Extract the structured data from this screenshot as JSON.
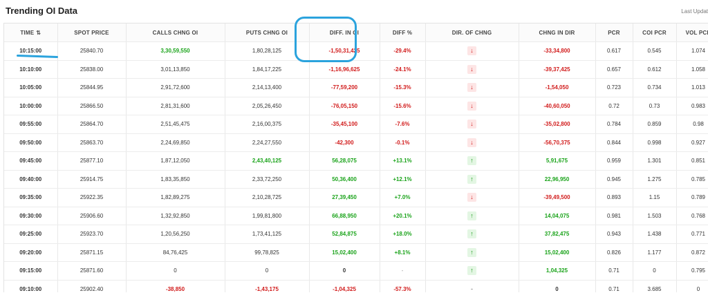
{
  "header": {
    "title": "Trending OI Data",
    "last_update_label": "Last Updat"
  },
  "table": {
    "columns": [
      "TIME",
      "SPOT PRICE",
      "CALLS CHNG OI",
      "PUTS CHNG OI",
      "DIFF. IN OI",
      "DIFF %",
      "DIR. OF CHNG",
      "CHNG IN DIR",
      "PCR",
      "COI PCR",
      "VOL PCR"
    ],
    "sort_icon": "⇅",
    "rows": [
      {
        "time": "10:15:00",
        "spot": "25840.70",
        "calls": "3,30,59,550",
        "calls_color": "pos",
        "puts": "1,80,28,125",
        "puts_color": "plain",
        "diff": "-1,50,31,425",
        "diff_color": "neg",
        "pct": "-29.4%",
        "pct_color": "neg",
        "dir": "down",
        "dir_icon": "↓",
        "chng": "-33,34,800",
        "chng_color": "neg",
        "pcr": "0.617",
        "coi": "0.545",
        "vol": "1.074"
      },
      {
        "time": "10:10:00",
        "spot": "25838.00",
        "calls": "3,01,13,850",
        "calls_color": "plain",
        "puts": "1,84,17,225",
        "puts_color": "plain",
        "diff": "-1,16,96,625",
        "diff_color": "neg",
        "pct": "-24.1%",
        "pct_color": "neg",
        "dir": "down",
        "dir_icon": "↓",
        "chng": "-39,37,425",
        "chng_color": "neg",
        "pcr": "0.657",
        "coi": "0.612",
        "vol": "1.058"
      },
      {
        "time": "10:05:00",
        "spot": "25844.95",
        "calls": "2,91,72,600",
        "calls_color": "plain",
        "puts": "2,14,13,400",
        "puts_color": "plain",
        "diff": "-77,59,200",
        "diff_color": "neg",
        "pct": "-15.3%",
        "pct_color": "neg",
        "dir": "down",
        "dir_icon": "↓",
        "chng": "-1,54,050",
        "chng_color": "neg",
        "pcr": "0.723",
        "coi": "0.734",
        "vol": "1.013"
      },
      {
        "time": "10:00:00",
        "spot": "25866.50",
        "calls": "2,81,31,600",
        "calls_color": "plain",
        "puts": "2,05,26,450",
        "puts_color": "plain",
        "diff": "-76,05,150",
        "diff_color": "neg",
        "pct": "-15.6%",
        "pct_color": "neg",
        "dir": "down",
        "dir_icon": "↓",
        "chng": "-40,60,050",
        "chng_color": "neg",
        "pcr": "0.72",
        "coi": "0.73",
        "vol": "0.983"
      },
      {
        "time": "09:55:00",
        "spot": "25864.70",
        "calls": "2,51,45,475",
        "calls_color": "plain",
        "puts": "2,16,00,375",
        "puts_color": "plain",
        "diff": "-35,45,100",
        "diff_color": "neg",
        "pct": "-7.6%",
        "pct_color": "neg",
        "dir": "down",
        "dir_icon": "↓",
        "chng": "-35,02,800",
        "chng_color": "neg",
        "pcr": "0.784",
        "coi": "0.859",
        "vol": "0.98"
      },
      {
        "time": "09:50:00",
        "spot": "25863.70",
        "calls": "2,24,69,850",
        "calls_color": "plain",
        "puts": "2,24,27,550",
        "puts_color": "plain",
        "diff": "-42,300",
        "diff_color": "neg",
        "pct": "-0.1%",
        "pct_color": "neg",
        "dir": "down",
        "dir_icon": "↓",
        "chng": "-56,70,375",
        "chng_color": "neg",
        "pcr": "0.844",
        "coi": "0.998",
        "vol": "0.927"
      },
      {
        "time": "09:45:00",
        "spot": "25877.10",
        "calls": "1,87,12,050",
        "calls_color": "plain",
        "puts": "2,43,40,125",
        "puts_color": "pos",
        "diff": "56,28,075",
        "diff_color": "pos",
        "pct": "+13.1%",
        "pct_color": "pos",
        "dir": "up",
        "dir_icon": "↑",
        "chng": "5,91,675",
        "chng_color": "pos",
        "pcr": "0.959",
        "coi": "1.301",
        "vol": "0.851"
      },
      {
        "time": "09:40:00",
        "spot": "25914.75",
        "calls": "1,83,35,850",
        "calls_color": "plain",
        "puts": "2,33,72,250",
        "puts_color": "plain",
        "diff": "50,36,400",
        "diff_color": "pos",
        "pct": "+12.1%",
        "pct_color": "pos",
        "dir": "up",
        "dir_icon": "↑",
        "chng": "22,96,950",
        "chng_color": "pos",
        "pcr": "0.945",
        "coi": "1.275",
        "vol": "0.785"
      },
      {
        "time": "09:35:00",
        "spot": "25922.35",
        "calls": "1,82,89,275",
        "calls_color": "plain",
        "puts": "2,10,28,725",
        "puts_color": "plain",
        "diff": "27,39,450",
        "diff_color": "pos",
        "pct": "+7.0%",
        "pct_color": "pos",
        "dir": "down",
        "dir_icon": "↓",
        "chng": "-39,49,500",
        "chng_color": "neg",
        "pcr": "0.893",
        "coi": "1.15",
        "vol": "0.789"
      },
      {
        "time": "09:30:00",
        "spot": "25906.60",
        "calls": "1,32,92,850",
        "calls_color": "plain",
        "puts": "1,99,81,800",
        "puts_color": "plain",
        "diff": "66,88,950",
        "diff_color": "pos",
        "pct": "+20.1%",
        "pct_color": "pos",
        "dir": "up",
        "dir_icon": "↑",
        "chng": "14,04,075",
        "chng_color": "pos",
        "pcr": "0.981",
        "coi": "1.503",
        "vol": "0.768"
      },
      {
        "time": "09:25:00",
        "spot": "25923.70",
        "calls": "1,20,56,250",
        "calls_color": "plain",
        "puts": "1,73,41,125",
        "puts_color": "plain",
        "diff": "52,84,875",
        "diff_color": "pos",
        "pct": "+18.0%",
        "pct_color": "pos",
        "dir": "up",
        "dir_icon": "↑",
        "chng": "37,82,475",
        "chng_color": "pos",
        "pcr": "0.943",
        "coi": "1.438",
        "vol": "0.771"
      },
      {
        "time": "09:20:00",
        "spot": "25871.15",
        "calls": "84,76,425",
        "calls_color": "plain",
        "puts": "99,78,825",
        "puts_color": "plain",
        "diff": "15,02,400",
        "diff_color": "pos",
        "pct": "+8.1%",
        "pct_color": "pos",
        "dir": "up",
        "dir_icon": "↑",
        "chng": "15,02,400",
        "chng_color": "pos",
        "pcr": "0.826",
        "coi": "1.177",
        "vol": "0.872"
      },
      {
        "time": "09:15:00",
        "spot": "25871.60",
        "calls": "0",
        "calls_color": "plain",
        "puts": "0",
        "puts_color": "plain",
        "diff": "0",
        "diff_color": "neutral",
        "pct": "-",
        "pct_color": "muted",
        "dir": "up",
        "dir_icon": "↑",
        "chng": "1,04,325",
        "chng_color": "pos",
        "pcr": "0.71",
        "coi": "0",
        "vol": "0.795"
      },
      {
        "time": "09:10:00",
        "spot": "25902.40",
        "calls": "-38,850",
        "calls_color": "neg",
        "puts": "-1,43,175",
        "puts_color": "neg",
        "diff": "-1,04,325",
        "diff_color": "neg",
        "pct": "-57.3%",
        "pct_color": "neg",
        "dir": "none",
        "dir_icon": "-",
        "chng": "0",
        "chng_color": "neutral",
        "pcr": "0.71",
        "coi": "3.685",
        "vol": "0"
      }
    ]
  }
}
